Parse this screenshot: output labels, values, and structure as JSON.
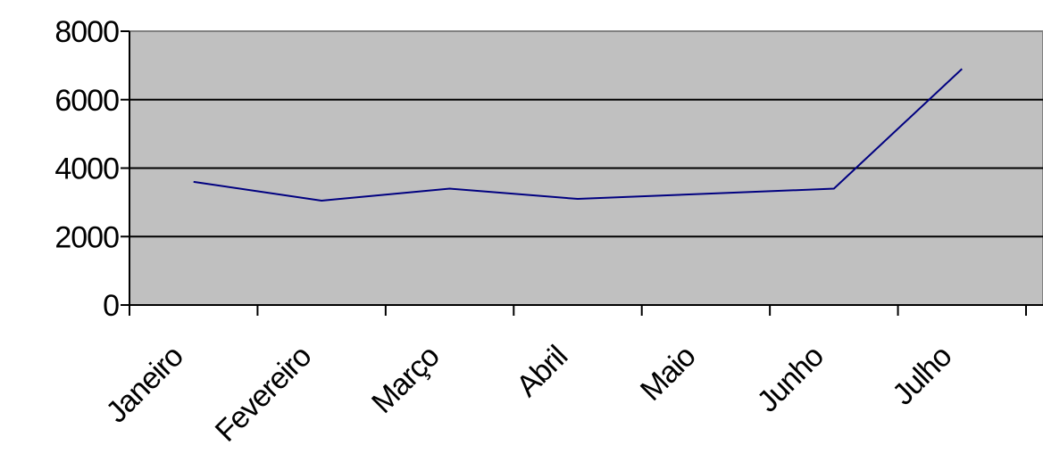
{
  "chart_data": {
    "type": "line",
    "categories": [
      "Janeiro",
      "Fevereiro",
      "Março",
      "Abril",
      "Maio",
      "Junho",
      "Julho"
    ],
    "values": [
      3600,
      3050,
      3400,
      3100,
      3250,
      3400,
      6900
    ],
    "color": "#000080",
    "ylim": [
      0,
      8000
    ],
    "yticks": [
      0,
      2000,
      4000,
      6000,
      8000
    ],
    "grid": true
  }
}
